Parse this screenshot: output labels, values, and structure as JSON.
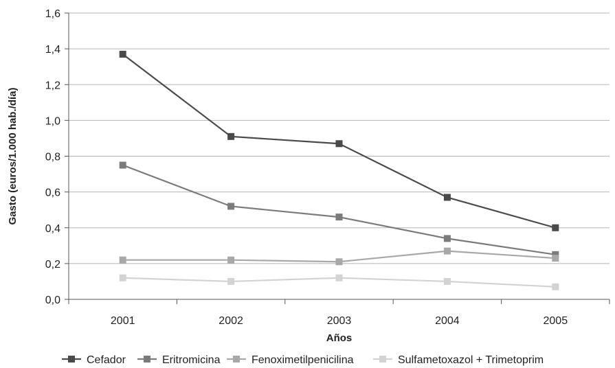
{
  "chart_data": {
    "type": "line",
    "categories": [
      "2001",
      "2002",
      "2003",
      "2004",
      "2005"
    ],
    "ylabel": "Gasto (euros/1.000 hab./día)",
    "xlabel": "Años",
    "ylim": [
      0,
      1.6
    ],
    "yticks": [
      "0,0",
      "0,2",
      "0,4",
      "0,6",
      "0,8",
      "1,0",
      "1,2",
      "1,4",
      "1,6"
    ],
    "ytick_values": [
      0,
      0.2,
      0.4,
      0.6,
      0.8,
      1.0,
      1.2,
      1.4,
      1.6
    ],
    "grid": true,
    "legend_position": "bottom",
    "series": [
      {
        "name": "Cefador",
        "color": "#4a4a4a",
        "values": [
          1.37,
          0.91,
          0.87,
          0.57,
          0.4
        ]
      },
      {
        "name": "Eritromicina",
        "color": "#7b7b7b",
        "values": [
          0.75,
          0.52,
          0.46,
          0.34,
          0.25
        ]
      },
      {
        "name": "Fenoximetilpenicilina",
        "color": "#a8a8a8",
        "values": [
          0.22,
          0.22,
          0.21,
          0.27,
          0.23
        ]
      },
      {
        "name": "Sulfametoxazol + Trimetoprim",
        "color": "#d3d3d3",
        "values": [
          0.12,
          0.1,
          0.12,
          0.1,
          0.07
        ]
      }
    ]
  }
}
